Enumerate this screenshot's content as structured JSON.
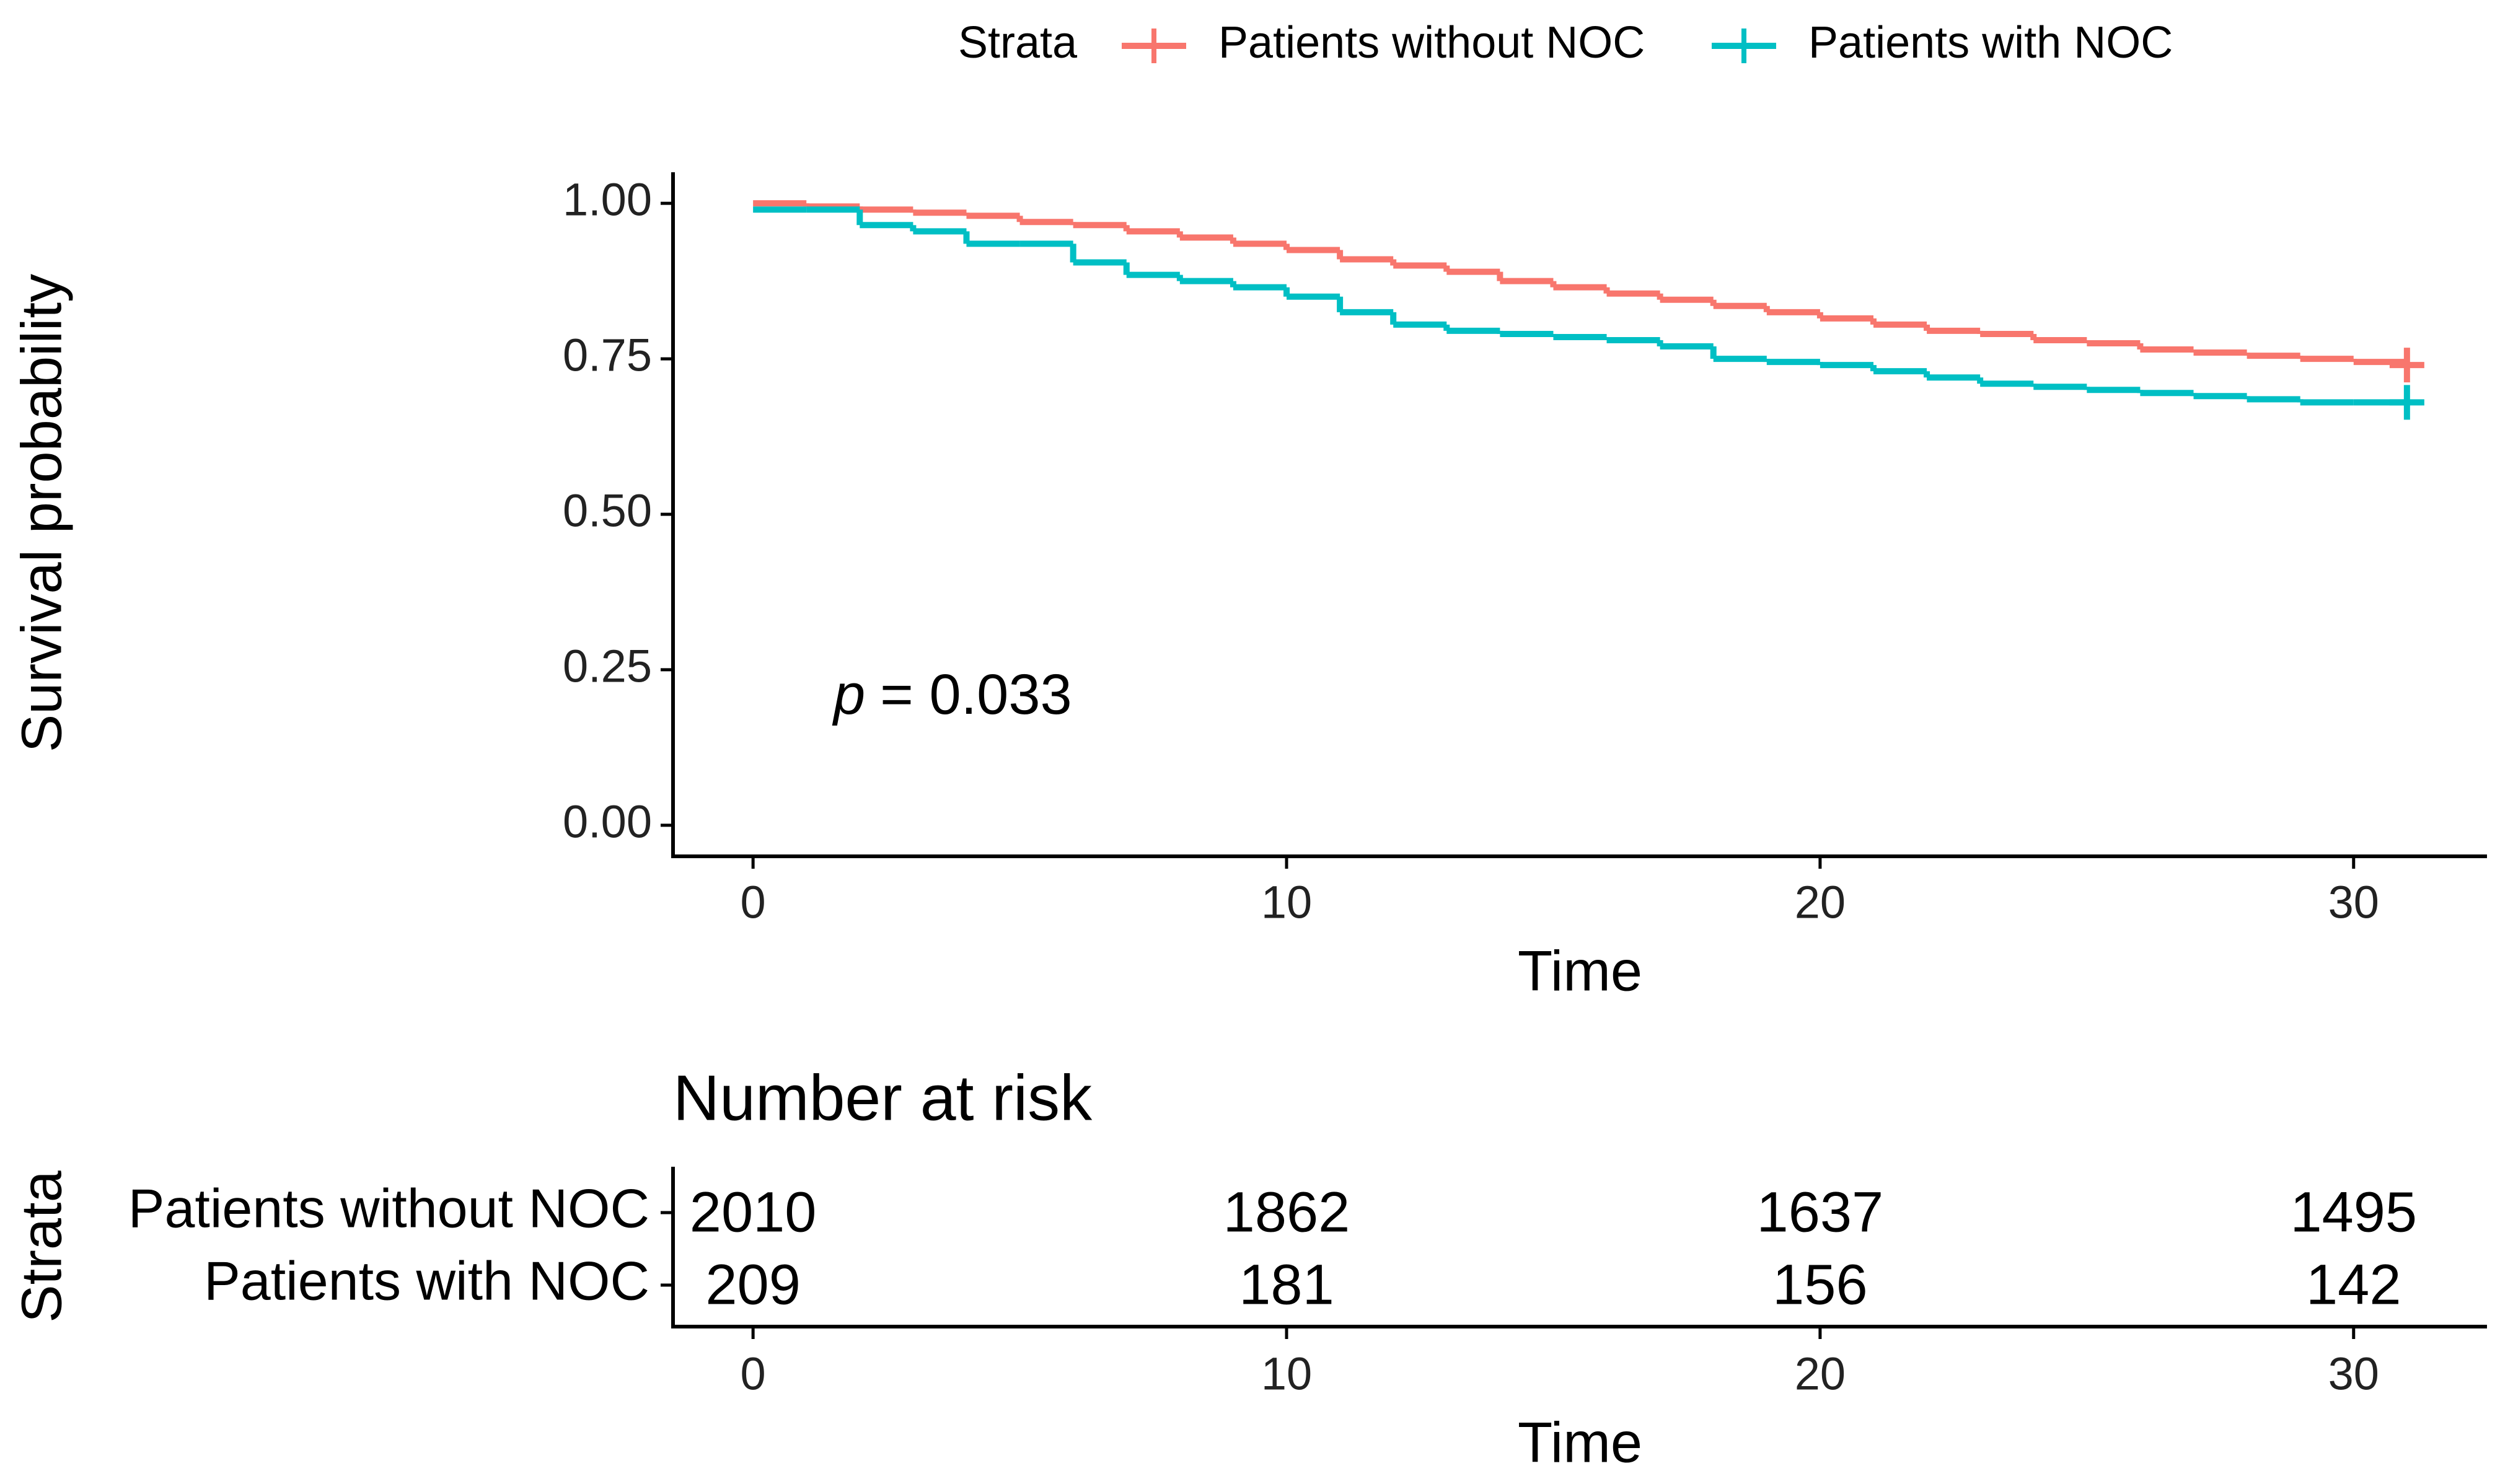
{
  "chart_data": [
    {
      "type": "step",
      "legend_title": "Strata",
      "xlabel": "Time",
      "ylabel": "Survival probability",
      "annotation": [
        "p",
        "= 0.033"
      ],
      "x": [
        0,
        1,
        2,
        3,
        4,
        5,
        6,
        7,
        8,
        9,
        10,
        11,
        12,
        13,
        14,
        15,
        16,
        17,
        18,
        19,
        20,
        21,
        22,
        23,
        24,
        25,
        26,
        27,
        28,
        29,
        30,
        31
      ],
      "series": [
        {
          "name": "Patients without NOC",
          "color": "#F8766D",
          "values": [
            1.0,
            0.995,
            0.99,
            0.985,
            0.98,
            0.97,
            0.965,
            0.955,
            0.945,
            0.935,
            0.925,
            0.91,
            0.9,
            0.89,
            0.875,
            0.865,
            0.855,
            0.845,
            0.835,
            0.825,
            0.815,
            0.805,
            0.795,
            0.79,
            0.78,
            0.775,
            0.765,
            0.76,
            0.755,
            0.75,
            0.745,
            0.74
          ]
        },
        {
          "name": "Patients with NOC",
          "color": "#00BFC4",
          "values": [
            0.99,
            0.99,
            0.965,
            0.955,
            0.935,
            0.935,
            0.905,
            0.885,
            0.875,
            0.865,
            0.85,
            0.825,
            0.805,
            0.795,
            0.79,
            0.785,
            0.78,
            0.77,
            0.75,
            0.745,
            0.74,
            0.73,
            0.72,
            0.71,
            0.705,
            0.7,
            0.695,
            0.69,
            0.685,
            0.68,
            0.68,
            0.68
          ]
        }
      ],
      "xlim": [
        -1.5,
        32.5
      ],
      "xticks": [
        0,
        10,
        20,
        30
      ],
      "ylim": [
        -0.05,
        1.05
      ],
      "yticks": [
        {
          "value": 0,
          "label": "0.00"
        },
        {
          "value": 0.25,
          "label": "0.25"
        },
        {
          "value": 0.5,
          "label": "0.50"
        },
        {
          "value": 0.75,
          "label": "0.75"
        },
        {
          "value": 1,
          "label": "1.00"
        }
      ]
    },
    {
      "type": "risk-table",
      "title": "Number at risk",
      "xlabel": "Time",
      "ylabel": "Strata",
      "x": [
        0,
        10,
        20,
        30
      ],
      "series": [
        {
          "name": "Patients without NOC",
          "color": "#F8766D",
          "values": [
            2010,
            1862,
            1637,
            1495
          ]
        },
        {
          "name": "Patients with NOC",
          "color": "#00BFC4",
          "values": [
            209,
            181,
            156,
            142
          ]
        }
      ],
      "xlim": [
        -1.5,
        32.5
      ],
      "xticks": [
        0,
        10,
        20,
        30
      ]
    }
  ]
}
